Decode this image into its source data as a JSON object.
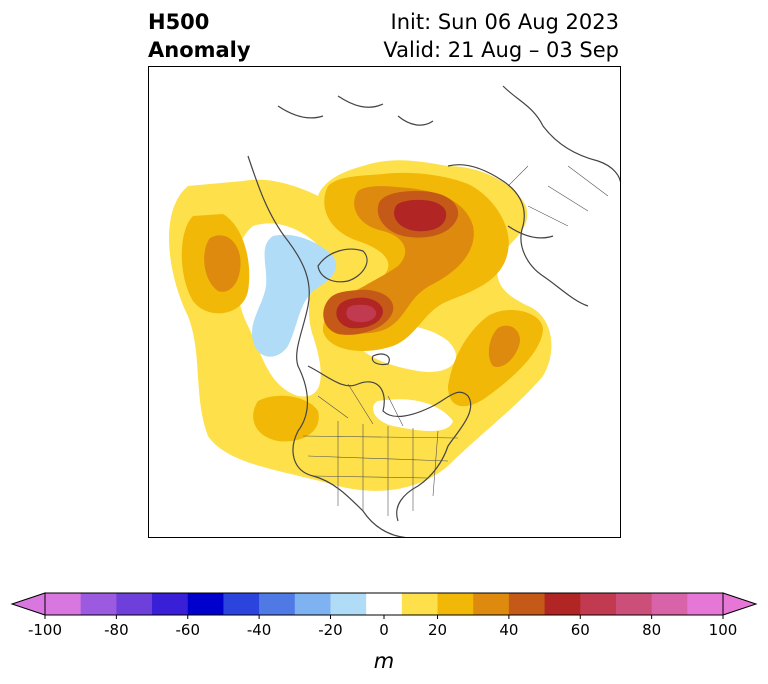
{
  "header": {
    "title_line1": "H500",
    "title_line2": "Anomaly",
    "init_line": "Init: Sun 06 Aug 2023",
    "valid_line": "Valid: 21 Aug – 03 Sep"
  },
  "map": {
    "projection": "north-polar-stereographic",
    "field": "500 hPa geopotential height anomaly",
    "features": [
      {
        "name": "positive-anomaly-north-pacific",
        "level": 30
      },
      {
        "name": "positive-anomaly-arctic-siberia",
        "level": 60
      },
      {
        "name": "positive-anomaly-greenland-canada",
        "level": 70
      },
      {
        "name": "positive-anomaly-north-atlantic",
        "level": 30
      },
      {
        "name": "positive-anomaly-central-us",
        "level": 20
      },
      {
        "name": "negative-anomaly-alaska-bering",
        "level": -20
      }
    ]
  },
  "colorbar": {
    "unit_label": "m",
    "tick_labels": [
      "-100",
      "-80",
      "-60",
      "-40",
      "-20",
      "0",
      "20",
      "40",
      "60",
      "80",
      "100"
    ],
    "levels": [
      -100,
      -90,
      -80,
      -70,
      -60,
      -50,
      -40,
      -30,
      -20,
      -10,
      10,
      20,
      30,
      40,
      50,
      60,
      70,
      80,
      90,
      100
    ],
    "colors": [
      "#d877e0",
      "#9c5ae0",
      "#6f3fdc",
      "#3a1fd8",
      "#0000cc",
      "#2b44de",
      "#4f7ae6",
      "#7fb2f0",
      "#b0dcf8",
      "#ffffff",
      "#fde04a",
      "#f1b807",
      "#dd8a0f",
      "#c55a18",
      "#b22525",
      "#c23a50",
      "#cc4f7a",
      "#d863a8",
      "#e677d6"
    ],
    "extend": "both"
  }
}
